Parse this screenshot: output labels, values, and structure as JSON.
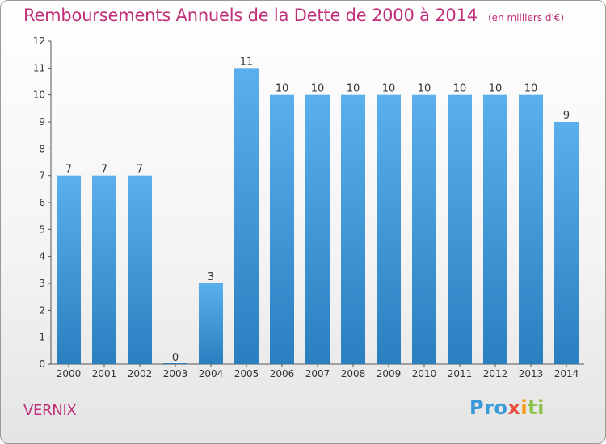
{
  "title": "Remboursements Annuels de la Dette de 2000 à 2014",
  "unit": "(en milliers d'€)",
  "place": "VERNIX",
  "logo": "Proxiti",
  "colors": {
    "title": "#c0307a",
    "bar_top": "#5aafec",
    "bar_bottom": "#2a7fc0",
    "axis": "#555555"
  },
  "chart_data": {
    "type": "bar",
    "categories": [
      "2000",
      "2001",
      "2002",
      "2003",
      "2004",
      "2005",
      "2006",
      "2007",
      "2008",
      "2009",
      "2010",
      "2011",
      "2012",
      "2013",
      "2014"
    ],
    "values": [
      7,
      7,
      7,
      0,
      3,
      11,
      10,
      10,
      10,
      10,
      10,
      10,
      10,
      10,
      9
    ],
    "title": "Remboursements Annuels de la Dette de 2000 à 2014",
    "xlabel": "",
    "ylabel": "",
    "ylim": [
      0,
      12
    ],
    "yticks": [
      0,
      1,
      2,
      3,
      4,
      5,
      6,
      7,
      8,
      9,
      10,
      11,
      12
    ],
    "grid": false,
    "data_labels": true
  }
}
